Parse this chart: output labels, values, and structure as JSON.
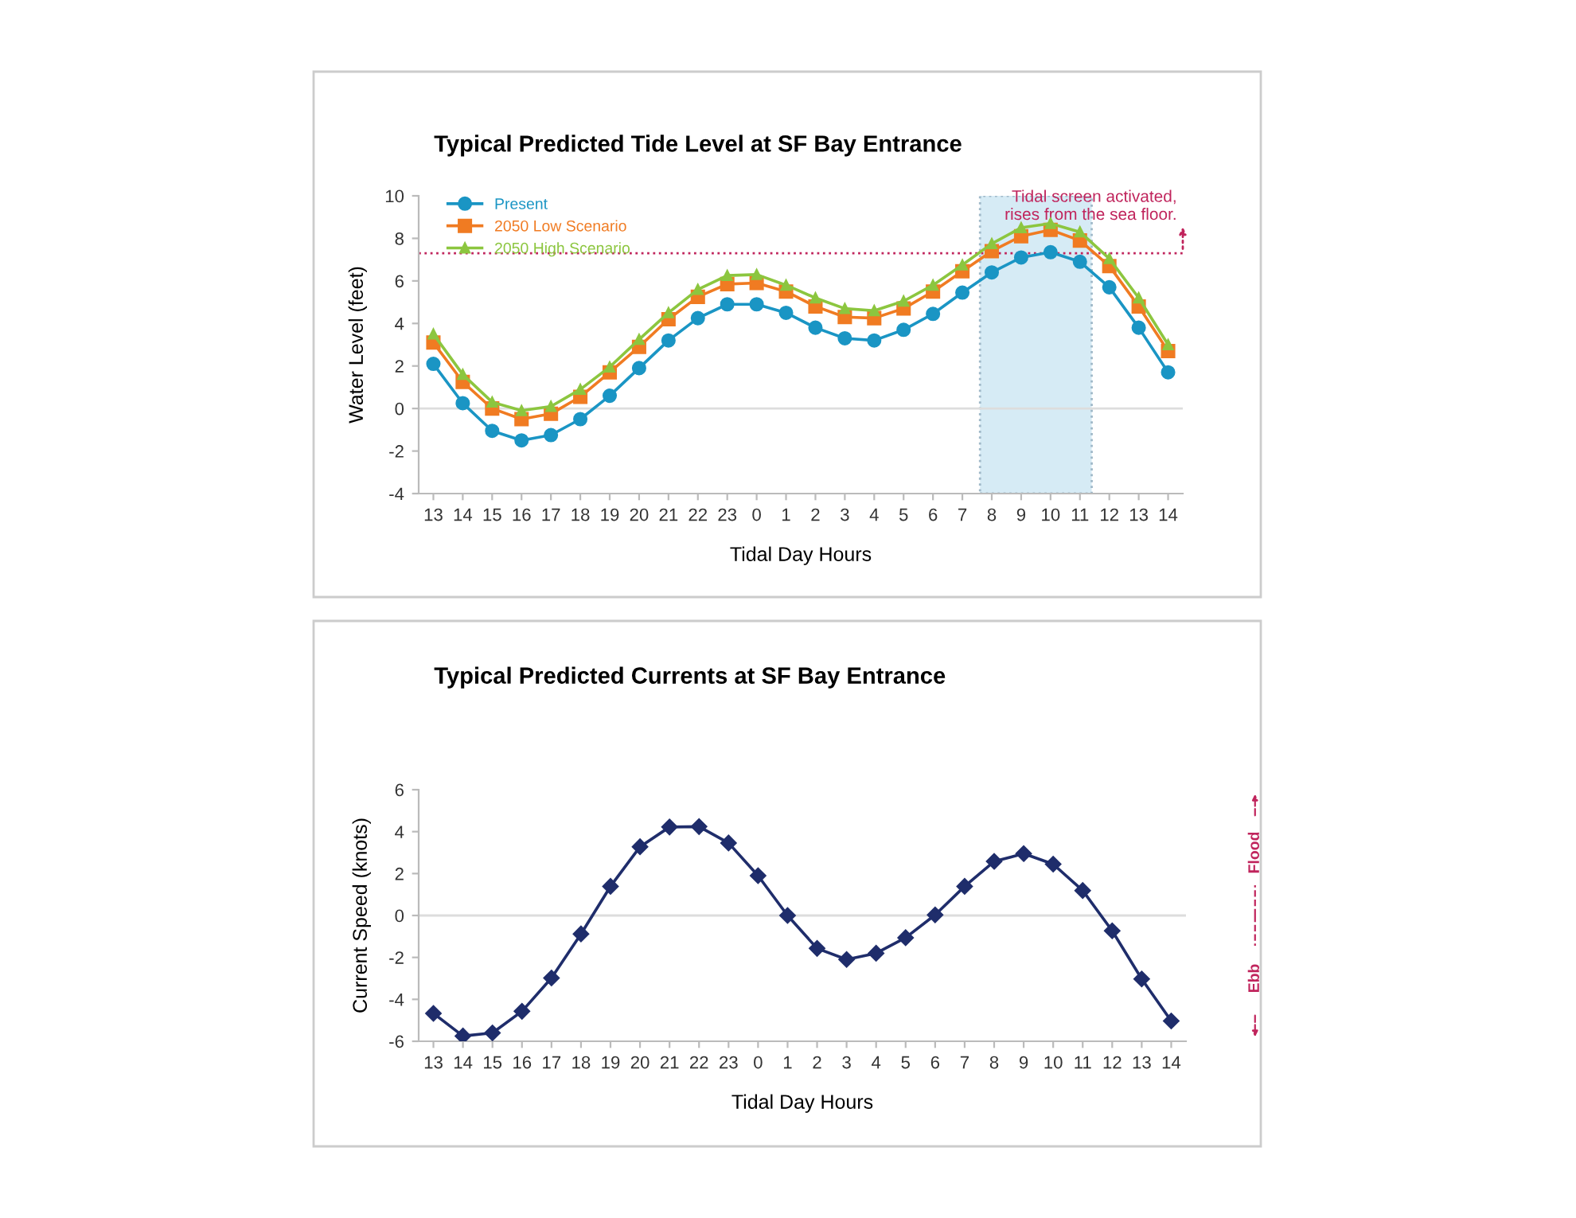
{
  "chart_data": [
    {
      "type": "line",
      "title": "Typical Predicted Tide Level at SF Bay Entrance",
      "xlabel": "Tidal Day Hours",
      "ylabel": "Water Level (feet)",
      "categories": [
        "13",
        "14",
        "15",
        "16",
        "17",
        "18",
        "19",
        "20",
        "21",
        "22",
        "23",
        "0",
        "1",
        "2",
        "3",
        "4",
        "5",
        "6",
        "7",
        "8",
        "9",
        "10",
        "11",
        "12",
        "13",
        "14"
      ],
      "series": [
        {
          "name": "Present",
          "color": "#1a95c4",
          "marker": "circle",
          "values": [
            2.1,
            0.25,
            -1.05,
            -1.5,
            -1.25,
            -0.5,
            0.6,
            1.9,
            3.2,
            4.25,
            4.9,
            4.9,
            4.5,
            3.8,
            3.3,
            3.2,
            3.7,
            4.45,
            5.45,
            6.4,
            7.1,
            7.35,
            6.9,
            5.7,
            3.8,
            1.7
          ]
        },
        {
          "name": "2050 Low Scenario",
          "color": "#f07b22",
          "marker": "square",
          "values": [
            3.1,
            1.25,
            0,
            -0.5,
            -0.25,
            0.55,
            1.7,
            2.9,
            4.2,
            5.25,
            5.85,
            5.9,
            5.5,
            4.8,
            4.3,
            4.25,
            4.7,
            5.5,
            6.45,
            7.4,
            8.1,
            8.4,
            7.9,
            6.7,
            4.8,
            2.7
          ]
        },
        {
          "name": "2050 High Scenario",
          "color": "#8cc63f",
          "marker": "triangle",
          "values": [
            3.5,
            1.6,
            0.3,
            -0.1,
            0.1,
            0.9,
            1.95,
            3.25,
            4.5,
            5.6,
            6.25,
            6.3,
            5.8,
            5.2,
            4.7,
            4.6,
            5.05,
            5.8,
            6.75,
            7.75,
            8.5,
            8.7,
            8.3,
            7.05,
            5.2,
            3.0
          ]
        }
      ],
      "ylim": [
        -4,
        10
      ],
      "yticks": [
        -4,
        -2,
        0,
        2,
        4,
        6,
        8,
        10
      ],
      "ref_lines": [
        {
          "axis": "y",
          "value": 7.3,
          "label": "Tidal screen activated,\nrises from the sea floor.",
          "color": "#c0245c",
          "line_style": "dotted"
        },
        {
          "axis": "y",
          "value": 0,
          "color": "#dddddd",
          "line_style": "solid"
        }
      ],
      "bands": [
        {
          "axis": "x",
          "from": "8",
          "to": "11",
          "color": "#d6ebf5"
        }
      ],
      "legend": "top left",
      "grid": false,
      "line_style": "solid"
    },
    {
      "type": "line",
      "title": "Typical Predicted Currents at SF Bay Entrance",
      "xlabel": "Tidal Day Hours",
      "ylabel": "Current Speed (knots)",
      "categories": [
        "13",
        "14",
        "15",
        "16",
        "17",
        "18",
        "19",
        "20",
        "21",
        "22",
        "23",
        "0",
        "1",
        "2",
        "3",
        "4",
        "5",
        "6",
        "7",
        "8",
        "9",
        "10",
        "11",
        "12",
        "13",
        "14"
      ],
      "series": [
        {
          "color": "#1f2d6b",
          "marker": "diamond",
          "values": [
            -4.67,
            -5.75,
            -5.6,
            -4.57,
            -2.98,
            -0.88,
            1.39,
            3.28,
            4.22,
            4.24,
            3.46,
            1.9,
            0,
            -1.57,
            -2.1,
            -1.8,
            -1.06,
            0.03,
            1.39,
            2.58,
            2.95,
            2.45,
            1.19,
            -0.73,
            -3.03,
            -5.03
          ]
        }
      ],
      "ylim": [
        -6,
        6
      ],
      "yticks": [
        -6,
        -4,
        -2,
        0,
        2,
        4,
        6
      ],
      "ref_lines": [
        {
          "axis": "y",
          "value": 0,
          "color": "#dddddd",
          "line_style": "solid"
        }
      ],
      "annotations": [
        "Flood",
        "Ebb"
      ],
      "grid": false,
      "line_style": "solid"
    }
  ]
}
